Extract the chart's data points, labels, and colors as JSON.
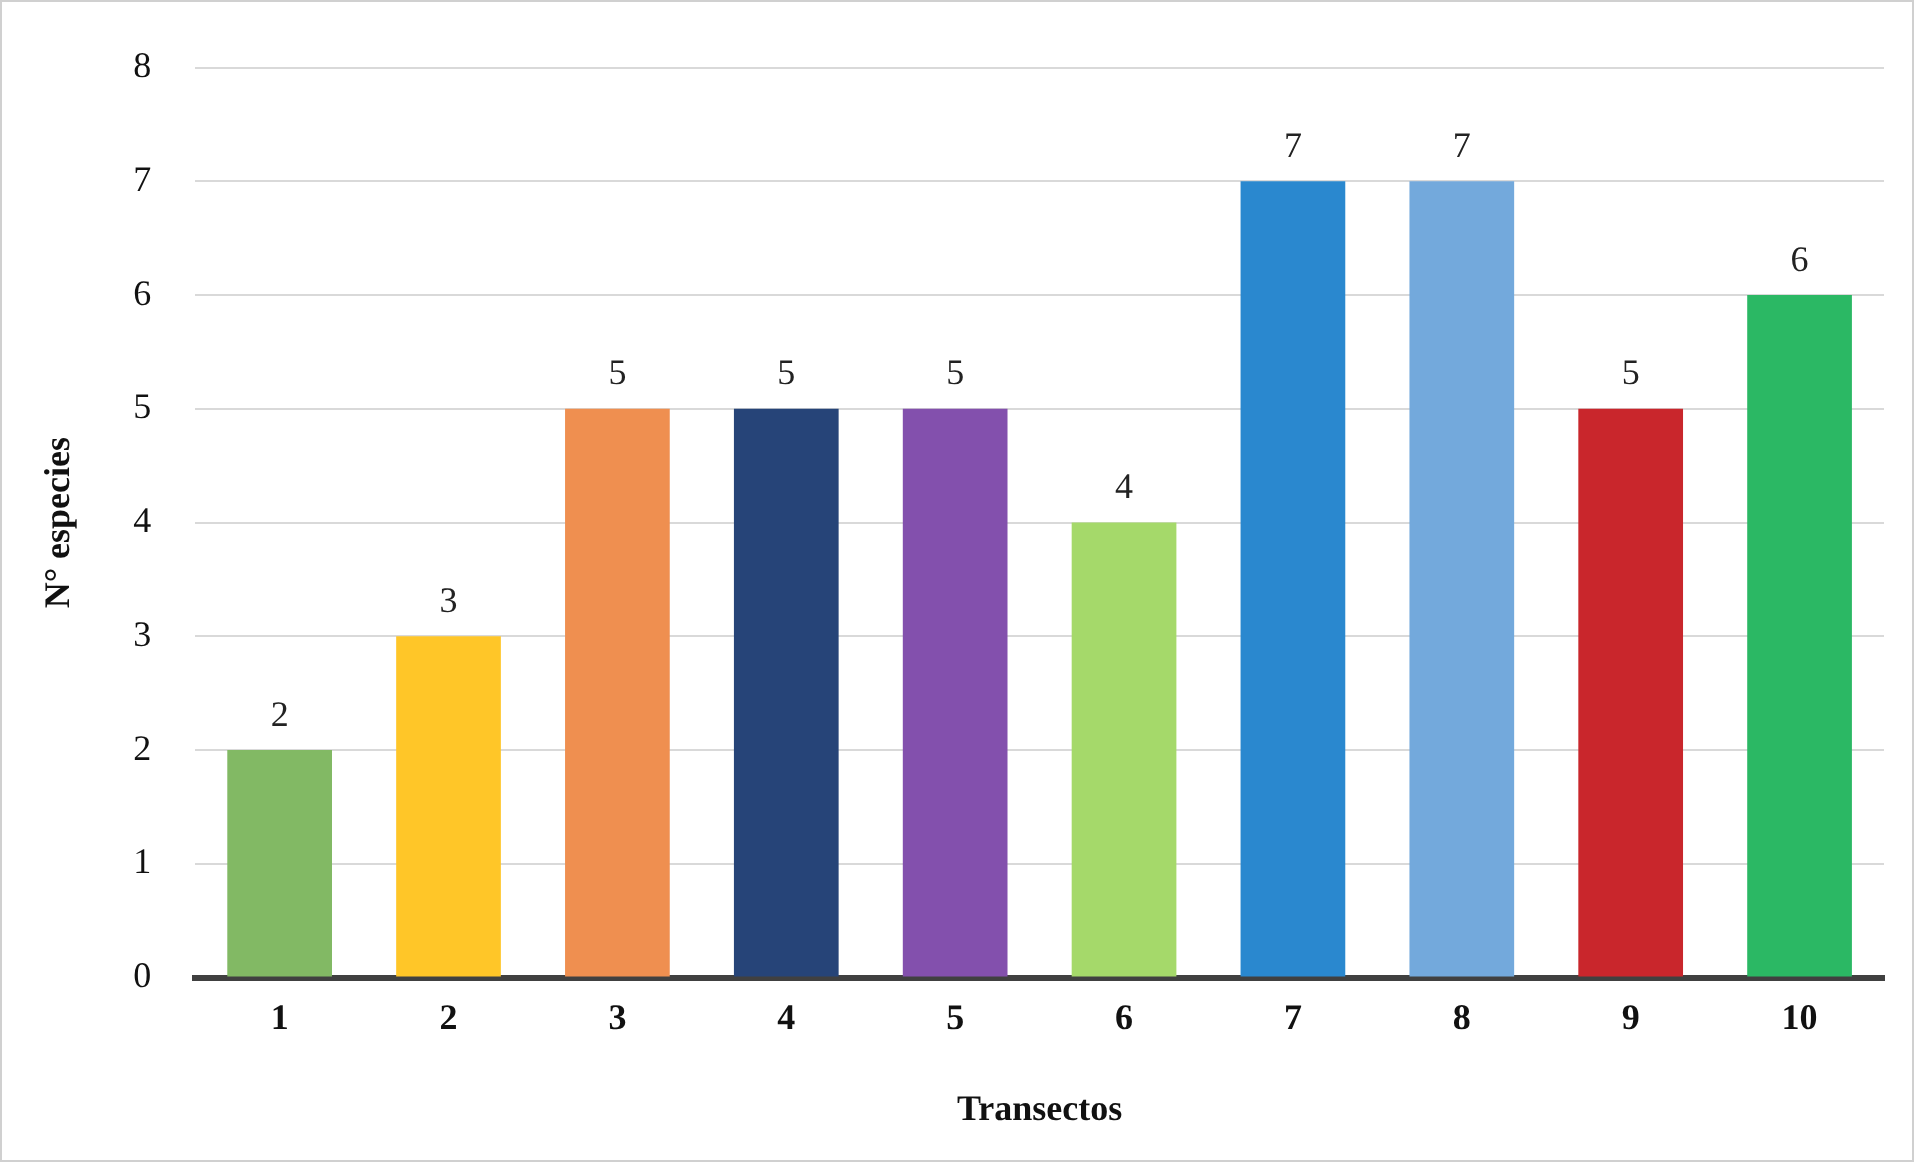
{
  "chart_data": {
    "type": "bar",
    "xlabel": "Transectos",
    "ylabel": "N° especies",
    "categories": [
      "1",
      "2",
      "3",
      "4",
      "5",
      "6",
      "7",
      "8",
      "9",
      "10"
    ],
    "values": [
      2,
      3,
      5,
      5,
      5,
      4,
      7,
      7,
      5,
      6
    ],
    "colors": [
      "#82b964",
      "#ffc628",
      "#ef8f50",
      "#264478",
      "#8350ad",
      "#a5d96a",
      "#2a88cf",
      "#73a9dc",
      "#c9262c",
      "#2bb864"
    ],
    "ylim": [
      0,
      8
    ],
    "yticks": [
      0,
      1,
      2,
      3,
      4,
      5,
      6,
      7,
      8
    ],
    "grid": "y",
    "data_labels": true,
    "legend": false
  }
}
